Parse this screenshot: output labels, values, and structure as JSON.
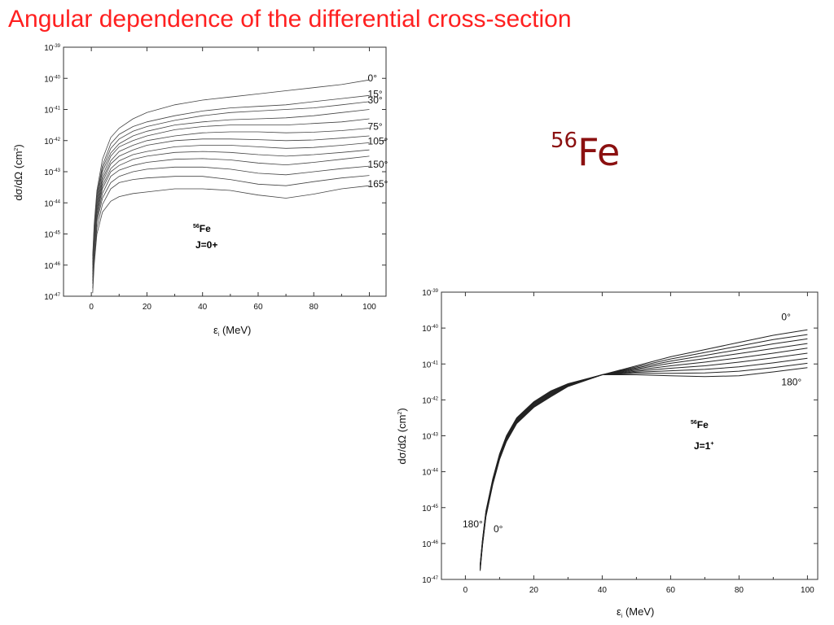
{
  "slide": {
    "title": "Angular dependence of the differential  cross-section",
    "isotope_mass": "56",
    "isotope_symbol": "Fe",
    "accent_color": "#ff2020",
    "isotope_color": "#8b1010"
  },
  "chart_data": [
    {
      "type": "line",
      "xlabel": "ε_i (MeV)",
      "ylabel": "dσ/dΩ (cm^2)",
      "xlim": [
        -10,
        106
      ],
      "ylim": [
        1e-47,
        1e-39
      ],
      "yscale": "log",
      "xticks": [
        0,
        20,
        40,
        60,
        80,
        100
      ],
      "yticks": [
        -47,
        -46,
        -45,
        -44,
        -43,
        -42,
        -41,
        -40,
        -39
      ],
      "grid": false,
      "legend": "none",
      "annotation": {
        "nucleus_mass": "56",
        "nucleus": "Fe",
        "state": "J=0+"
      },
      "series": [
        {
          "name": "0°",
          "label": "0°",
          "x": [
            0.5,
            1,
            2,
            4,
            7,
            10,
            15,
            20,
            30,
            40,
            50,
            60,
            70,
            80,
            90,
            100
          ],
          "y": [
            -45.7,
            -44.7,
            -43.6,
            -42.6,
            -41.9,
            -41.6,
            -41.3,
            -41.1,
            -40.85,
            -40.7,
            -40.6,
            -40.5,
            -40.4,
            -40.3,
            -40.2,
            -40.05
          ]
        },
        {
          "name": "15°",
          "label": "15°",
          "x": [
            0.5,
            1,
            2,
            4,
            7,
            10,
            15,
            20,
            30,
            40,
            50,
            60,
            70,
            80,
            90,
            100
          ],
          "y": [
            -45.8,
            -44.8,
            -43.7,
            -42.8,
            -42.1,
            -41.8,
            -41.55,
            -41.4,
            -41.2,
            -41.05,
            -40.95,
            -40.9,
            -40.85,
            -40.75,
            -40.65,
            -40.55
          ]
        },
        {
          "name": "30°",
          "label": "30°",
          "x": [
            0.5,
            1,
            2,
            4,
            7,
            10,
            15,
            20,
            30,
            40,
            50,
            60,
            70,
            80,
            90,
            100
          ],
          "y": [
            -45.9,
            -44.9,
            -43.8,
            -42.9,
            -42.25,
            -41.95,
            -41.7,
            -41.55,
            -41.35,
            -41.2,
            -41.1,
            -41.05,
            -41.0,
            -40.95,
            -40.85,
            -40.75
          ]
        },
        {
          "name": "",
          "x": [
            0.5,
            1,
            2,
            4,
            7,
            10,
            15,
            20,
            30,
            40,
            50,
            60,
            70,
            80,
            90,
            100
          ],
          "y": [
            -45.95,
            -45.0,
            -43.9,
            -43.0,
            -42.4,
            -42.1,
            -41.85,
            -41.7,
            -41.5,
            -41.4,
            -41.33,
            -41.3,
            -41.27,
            -41.2,
            -41.1,
            -41.0
          ]
        },
        {
          "name": "",
          "x": [
            0.5,
            1,
            2,
            4,
            7,
            10,
            15,
            20,
            30,
            40,
            50,
            60,
            70,
            80,
            90,
            100
          ],
          "y": [
            -46.0,
            -45.1,
            -44.0,
            -43.15,
            -42.5,
            -42.2,
            -42.0,
            -41.85,
            -41.65,
            -41.55,
            -41.5,
            -41.5,
            -41.5,
            -41.45,
            -41.4,
            -41.3
          ]
        },
        {
          "name": "75°",
          "label": "75°",
          "x": [
            0.5,
            1,
            2,
            4,
            7,
            10,
            15,
            20,
            30,
            40,
            50,
            60,
            70,
            80,
            90,
            100
          ],
          "y": [
            -46.1,
            -45.2,
            -44.1,
            -43.25,
            -42.65,
            -42.35,
            -42.15,
            -42.0,
            -41.85,
            -41.75,
            -41.72,
            -41.72,
            -41.75,
            -41.73,
            -41.68,
            -41.6
          ]
        },
        {
          "name": "",
          "x": [
            0.5,
            1,
            2,
            4,
            7,
            10,
            15,
            20,
            30,
            40,
            50,
            60,
            70,
            80,
            90,
            100
          ],
          "y": [
            -46.2,
            -45.3,
            -44.2,
            -43.35,
            -42.75,
            -42.5,
            -42.3,
            -42.15,
            -42.0,
            -41.95,
            -41.95,
            -41.97,
            -42.0,
            -41.98,
            -41.92,
            -41.85
          ]
        },
        {
          "name": "105°",
          "label": "105°",
          "x": [
            0.5,
            1,
            2,
            4,
            7,
            10,
            15,
            20,
            30,
            40,
            50,
            60,
            70,
            80,
            90,
            100
          ],
          "y": [
            -46.3,
            -45.4,
            -44.3,
            -43.45,
            -42.9,
            -42.65,
            -42.45,
            -42.35,
            -42.2,
            -42.15,
            -42.15,
            -42.2,
            -42.25,
            -42.22,
            -42.15,
            -42.07
          ]
        },
        {
          "name": "",
          "x": [
            0.5,
            1,
            2,
            4,
            7,
            10,
            15,
            20,
            30,
            40,
            50,
            60,
            70,
            80,
            90,
            100
          ],
          "y": [
            -46.4,
            -45.5,
            -44.4,
            -43.55,
            -43.0,
            -42.8,
            -42.6,
            -42.5,
            -42.38,
            -42.35,
            -42.38,
            -42.45,
            -42.5,
            -42.45,
            -42.38,
            -42.3
          ]
        },
        {
          "name": "",
          "x": [
            0.5,
            1,
            2,
            4,
            7,
            10,
            15,
            20,
            30,
            40,
            50,
            60,
            70,
            80,
            90,
            100
          ],
          "y": [
            -46.5,
            -45.6,
            -44.5,
            -43.7,
            -43.15,
            -42.95,
            -42.8,
            -42.7,
            -42.6,
            -42.58,
            -42.62,
            -42.72,
            -42.78,
            -42.7,
            -42.6,
            -42.5
          ]
        },
        {
          "name": "150°",
          "label": "150°",
          "x": [
            0.5,
            1,
            2,
            4,
            7,
            10,
            15,
            20,
            30,
            40,
            50,
            60,
            70,
            80,
            90,
            100
          ],
          "y": [
            -46.6,
            -45.7,
            -44.6,
            -43.85,
            -43.35,
            -43.15,
            -43.0,
            -42.92,
            -42.85,
            -42.85,
            -42.92,
            -43.05,
            -43.1,
            -43.0,
            -42.9,
            -42.82
          ]
        },
        {
          "name": "",
          "x": [
            0.5,
            1,
            2,
            4,
            7,
            10,
            15,
            20,
            30,
            40,
            50,
            60,
            70,
            80,
            90,
            100
          ],
          "y": [
            -46.75,
            -45.85,
            -44.8,
            -44.05,
            -43.55,
            -43.35,
            -43.25,
            -43.2,
            -43.15,
            -43.15,
            -43.25,
            -43.4,
            -43.45,
            -43.32,
            -43.2,
            -43.12
          ]
        },
        {
          "name": "165°",
          "label": "165°",
          "x": [
            0.5,
            1,
            2,
            4,
            7,
            10,
            15,
            20,
            30,
            40,
            50,
            60,
            70,
            80,
            90,
            100
          ],
          "y": [
            -46.9,
            -46.0,
            -45.0,
            -44.3,
            -43.95,
            -43.8,
            -43.7,
            -43.65,
            -43.55,
            -43.55,
            -43.6,
            -43.75,
            -43.85,
            -43.72,
            -43.55,
            -43.45
          ]
        }
      ]
    },
    {
      "type": "line",
      "xlabel": "ε_i (MeV)",
      "ylabel": "dσ/dΩ (cm^2)",
      "xlim": [
        -7,
        103
      ],
      "ylim": [
        1e-47,
        1e-39
      ],
      "yscale": "log",
      "xticks": [
        0,
        20,
        40,
        60,
        80,
        100
      ],
      "yticks": [
        -47,
        -46,
        -45,
        -44,
        -43,
        -42,
        -41,
        -40,
        -39
      ],
      "grid": false,
      "legend": "none",
      "annotation": {
        "nucleus_mass": "56",
        "nucleus": "Fe",
        "state": "J=1",
        "parity": "+"
      },
      "low_energy_labels": {
        "left": "180°",
        "right": "0°"
      },
      "series": [
        {
          "name": "0°",
          "label": "0°",
          "x": [
            4.3,
            5,
            6,
            8,
            10,
            12,
            15,
            20,
            25,
            30,
            40,
            50,
            60,
            70,
            80,
            90,
            100
          ],
          "y": [
            -46.6,
            -45.9,
            -45.1,
            -44.2,
            -43.5,
            -43.0,
            -42.5,
            -42.05,
            -41.75,
            -41.55,
            -41.3,
            -41.05,
            -40.8,
            -40.6,
            -40.4,
            -40.2,
            -40.05
          ]
        },
        {
          "name": "",
          "x": [
            4.3,
            5,
            6,
            8,
            10,
            12,
            15,
            20,
            25,
            30,
            40,
            50,
            60,
            70,
            80,
            90,
            100
          ],
          "y": [
            -46.62,
            -45.92,
            -45.12,
            -44.22,
            -43.52,
            -43.02,
            -42.52,
            -42.07,
            -41.77,
            -41.56,
            -41.3,
            -41.08,
            -40.86,
            -40.68,
            -40.5,
            -40.32,
            -40.18
          ]
        },
        {
          "name": "",
          "x": [
            4.3,
            5,
            6,
            8,
            10,
            12,
            15,
            20,
            25,
            30,
            40,
            50,
            60,
            70,
            80,
            90,
            100
          ],
          "y": [
            -46.64,
            -45.94,
            -45.14,
            -44.24,
            -43.54,
            -43.04,
            -42.54,
            -42.09,
            -41.79,
            -41.57,
            -41.3,
            -41.11,
            -40.92,
            -40.76,
            -40.6,
            -40.44,
            -40.3
          ]
        },
        {
          "name": "",
          "x": [
            4.3,
            5,
            6,
            8,
            10,
            12,
            15,
            20,
            25,
            30,
            40,
            50,
            60,
            70,
            80,
            90,
            100
          ],
          "y": [
            -46.66,
            -45.96,
            -45.16,
            -44.26,
            -43.56,
            -43.06,
            -42.56,
            -42.11,
            -41.81,
            -41.58,
            -41.3,
            -41.14,
            -40.98,
            -40.85,
            -40.71,
            -40.57,
            -40.43
          ]
        },
        {
          "name": "",
          "x": [
            4.3,
            5,
            6,
            8,
            10,
            12,
            15,
            20,
            25,
            30,
            40,
            50,
            60,
            70,
            80,
            90,
            100
          ],
          "y": [
            -46.68,
            -45.98,
            -45.18,
            -44.28,
            -43.58,
            -43.08,
            -42.58,
            -42.13,
            -41.83,
            -41.59,
            -41.3,
            -41.17,
            -41.05,
            -40.95,
            -40.83,
            -40.7,
            -40.56
          ]
        },
        {
          "name": "",
          "x": [
            4.3,
            5,
            6,
            8,
            10,
            12,
            15,
            20,
            25,
            30,
            40,
            50,
            60,
            70,
            80,
            90,
            100
          ],
          "y": [
            -46.7,
            -46.0,
            -45.2,
            -44.3,
            -43.6,
            -43.1,
            -42.6,
            -42.15,
            -41.85,
            -41.6,
            -41.3,
            -41.2,
            -41.12,
            -41.05,
            -40.95,
            -40.83,
            -40.7
          ]
        },
        {
          "name": "",
          "x": [
            4.3,
            5,
            6,
            8,
            10,
            12,
            15,
            20,
            25,
            30,
            40,
            50,
            60,
            70,
            80,
            90,
            100
          ],
          "y": [
            -46.72,
            -46.02,
            -45.22,
            -44.32,
            -43.62,
            -43.12,
            -42.62,
            -42.17,
            -41.87,
            -41.61,
            -41.3,
            -41.23,
            -41.19,
            -41.15,
            -41.08,
            -40.97,
            -40.84
          ]
        },
        {
          "name": "",
          "x": [
            4.3,
            5,
            6,
            8,
            10,
            12,
            15,
            20,
            25,
            30,
            40,
            50,
            60,
            70,
            80,
            90,
            100
          ],
          "y": [
            -46.74,
            -46.04,
            -45.24,
            -44.34,
            -43.64,
            -43.14,
            -42.64,
            -42.19,
            -41.89,
            -41.62,
            -41.3,
            -41.26,
            -41.26,
            -41.25,
            -41.2,
            -41.1,
            -40.98
          ]
        },
        {
          "name": "180°",
          "label": "180°",
          "x": [
            4.3,
            5,
            6,
            8,
            10,
            12,
            15,
            20,
            25,
            30,
            40,
            50,
            60,
            70,
            80,
            90,
            100
          ],
          "y": [
            -46.76,
            -46.06,
            -45.26,
            -44.36,
            -43.66,
            -43.16,
            -42.66,
            -42.21,
            -41.91,
            -41.63,
            -41.3,
            -41.3,
            -41.33,
            -41.35,
            -41.33,
            -41.22,
            -41.1
          ]
        }
      ]
    }
  ]
}
